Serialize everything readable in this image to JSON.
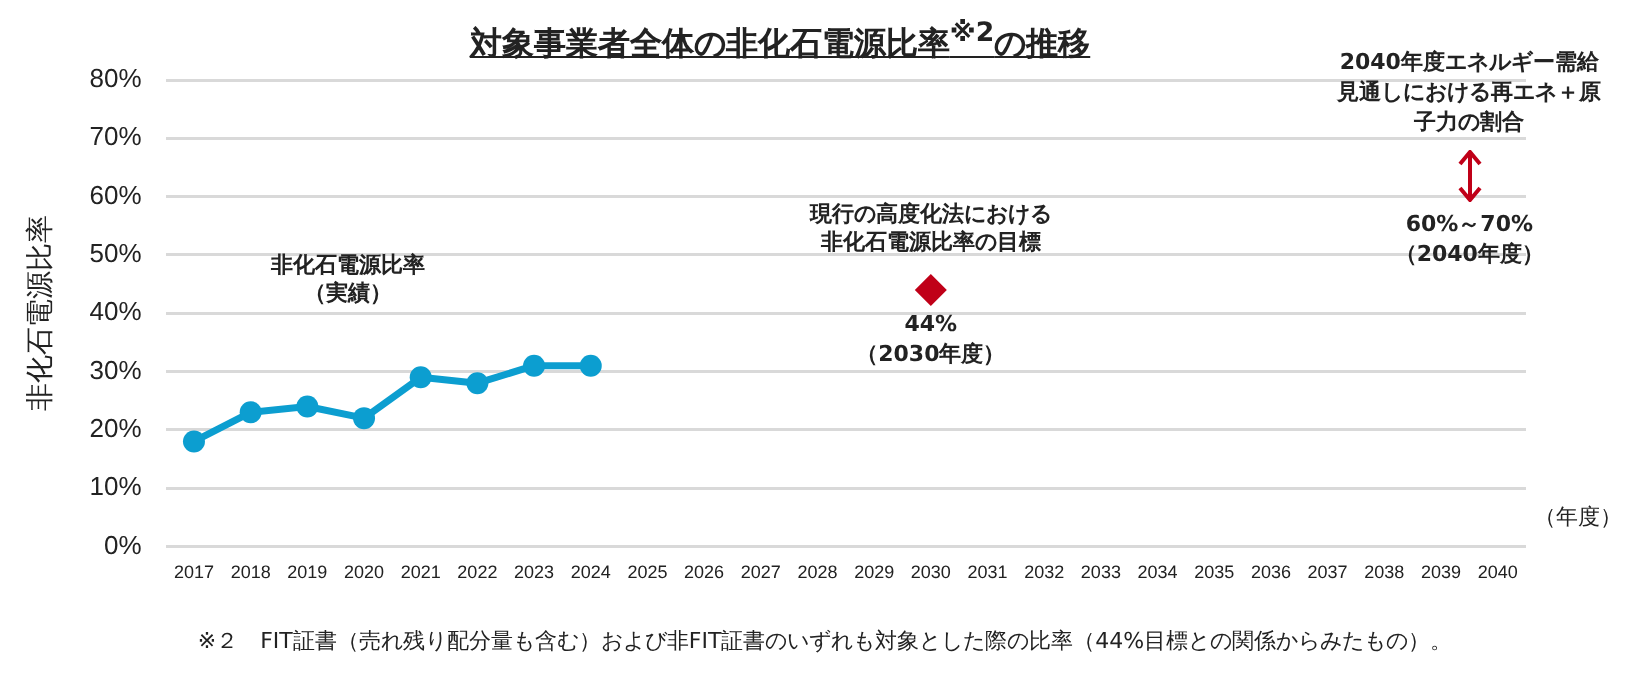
{
  "chart_data": {
    "type": "line",
    "title": "対象事業者全体の非化石電源比率$^{※2}$の推移",
    "ylabel": "非化石電源比率",
    "xlabel": "（年度）",
    "categories": [
      "2017",
      "2018",
      "2019",
      "2020",
      "2021",
      "2022",
      "2023",
      "2024",
      "2025",
      "2026",
      "2027",
      "2028",
      "2029",
      "2030",
      "2031",
      "2032",
      "2033",
      "2034",
      "2035",
      "2036",
      "2037",
      "2038",
      "2039",
      "2040"
    ],
    "series": [
      {
        "name": "非化石電源比率（実績）",
        "color": "#0c9ed0",
        "values": [
          18,
          23,
          24,
          22,
          29,
          28,
          31,
          31,
          null,
          null,
          null,
          null,
          null,
          null,
          null,
          null,
          null,
          null,
          null,
          null,
          null,
          null,
          null,
          null
        ],
        "marker": "circle"
      },
      {
        "name": "現行の高度化法における非化石電源比率の目標",
        "type": "scatter",
        "color": "#c00018",
        "values": [
          null,
          null,
          null,
          null,
          null,
          null,
          null,
          null,
          null,
          null,
          null,
          null,
          null,
          44,
          null,
          null,
          null,
          null,
          null,
          null,
          null,
          null,
          null,
          null
        ],
        "marker": "diamond"
      }
    ],
    "ylim": [
      0,
      80
    ],
    "yticks": [
      {
        "value": 0,
        "label": "0%"
      },
      {
        "value": 10,
        "label": "10%"
      },
      {
        "value": 20,
        "label": "20%"
      },
      {
        "value": 30,
        "label": "30%"
      },
      {
        "value": 40,
        "label": "40%"
      },
      {
        "value": 50,
        "label": "50%"
      },
      {
        "value": 60,
        "label": "60%"
      },
      {
        "value": 70,
        "label": "70%"
      },
      {
        "value": 80,
        "label": "80%"
      }
    ],
    "grid": "y",
    "legend": false,
    "annotations": [
      "2040年度エネルギー需給見通しにおける再エネ＋原子力の割合",
      "60%～70%（2040年度）",
      {
        "text": "44%（2030年度）",
        "x": "2030",
        "y": 44
      },
      "※２　FIT証書（売れ残り配分量も含む）および非FIT証書のいずれも対象とした際の比率（44%目標との関係からみたもの）。"
    ]
  }
}
